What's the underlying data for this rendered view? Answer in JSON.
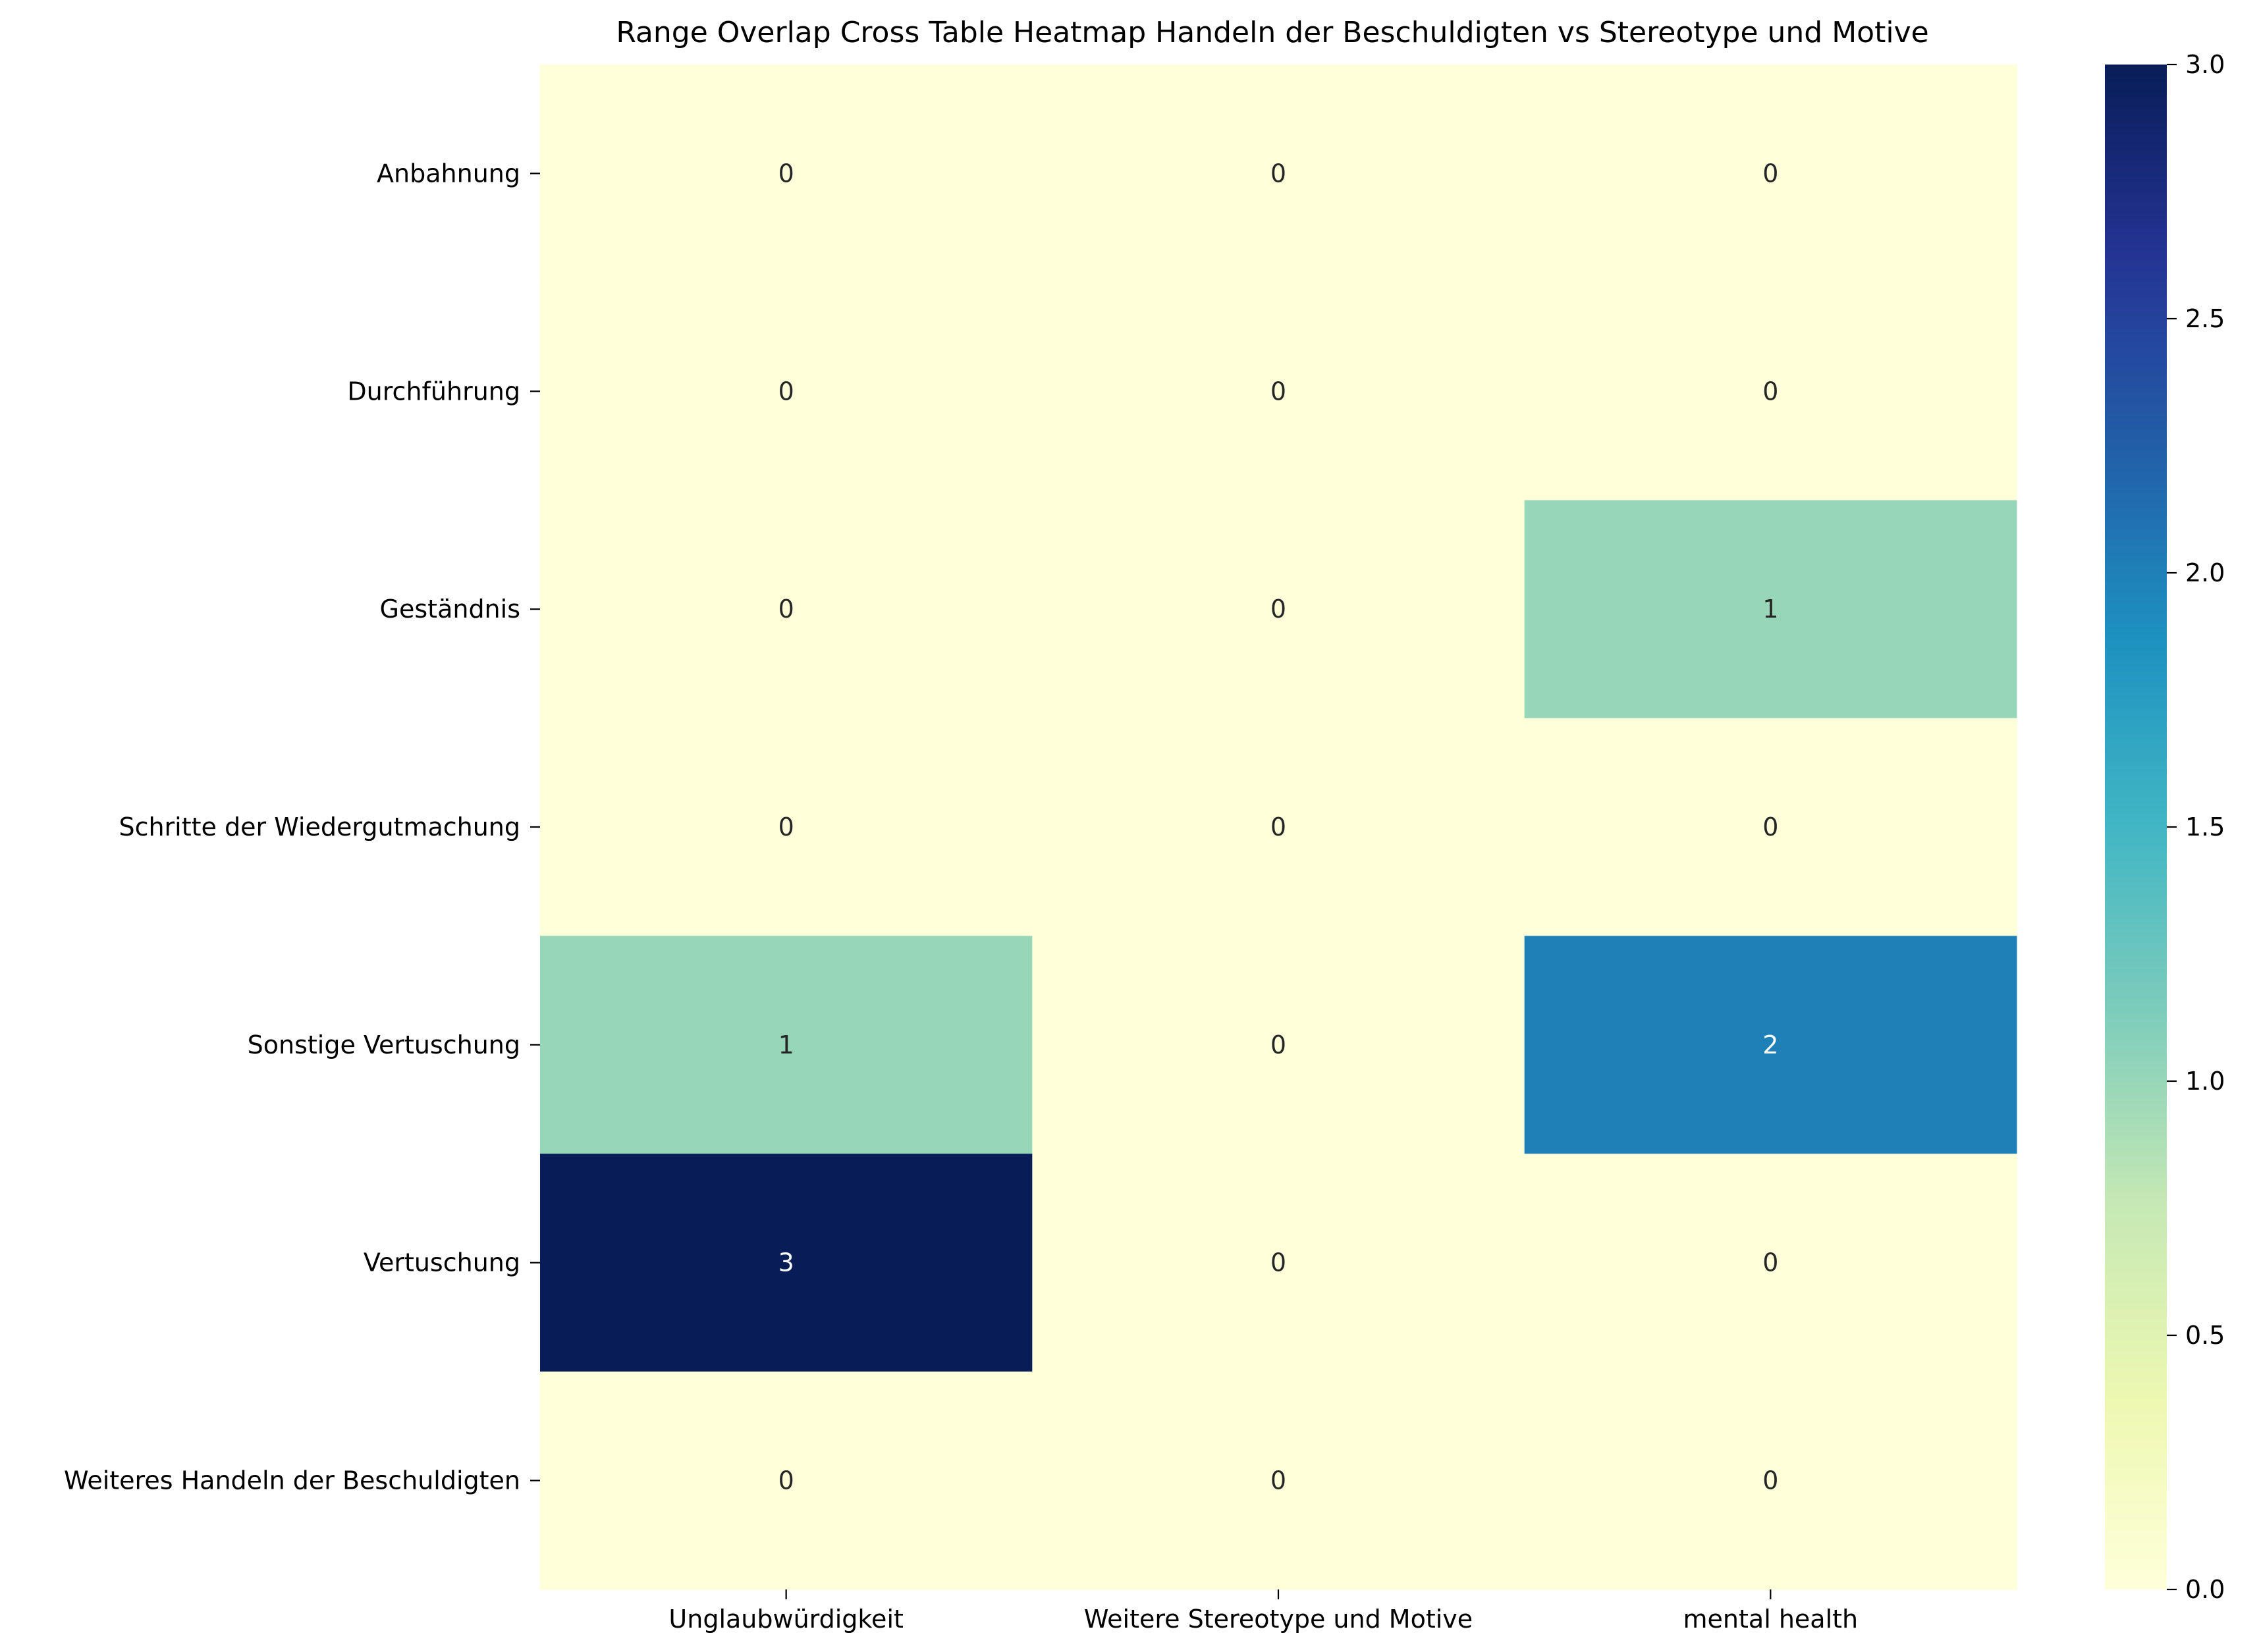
{
  "chart_data": {
    "type": "heatmap",
    "title": "Range Overlap Cross Table Heatmap Handeln der Beschuldigten vs Stereotype und Motive",
    "xlabel": "",
    "ylabel": "",
    "x_categories": [
      "Unglaubwürdigkeit",
      "Weitere Stereotype und Motive",
      "mental health"
    ],
    "y_categories": [
      "Anbahnung",
      "Durchführung",
      "Geständnis",
      "Schritte der Wiedergutmachung",
      "Sonstige Vertuschung",
      "Vertuschung",
      "Weiteres Handeln der Beschuldigten"
    ],
    "values": [
      [
        0,
        0,
        0
      ],
      [
        0,
        0,
        0
      ],
      [
        0,
        0,
        1
      ],
      [
        0,
        0,
        0
      ],
      [
        1,
        0,
        2
      ],
      [
        3,
        0,
        0
      ],
      [
        0,
        0,
        0
      ]
    ],
    "colorscale": "YlGnBu",
    "color_range": [
      0,
      3
    ],
    "colorbar_ticks": [
      "0.0",
      "0.5",
      "1.0",
      "1.5",
      "2.0",
      "2.5",
      "3.0"
    ],
    "annotations": true,
    "legend": "colorbar-right"
  }
}
